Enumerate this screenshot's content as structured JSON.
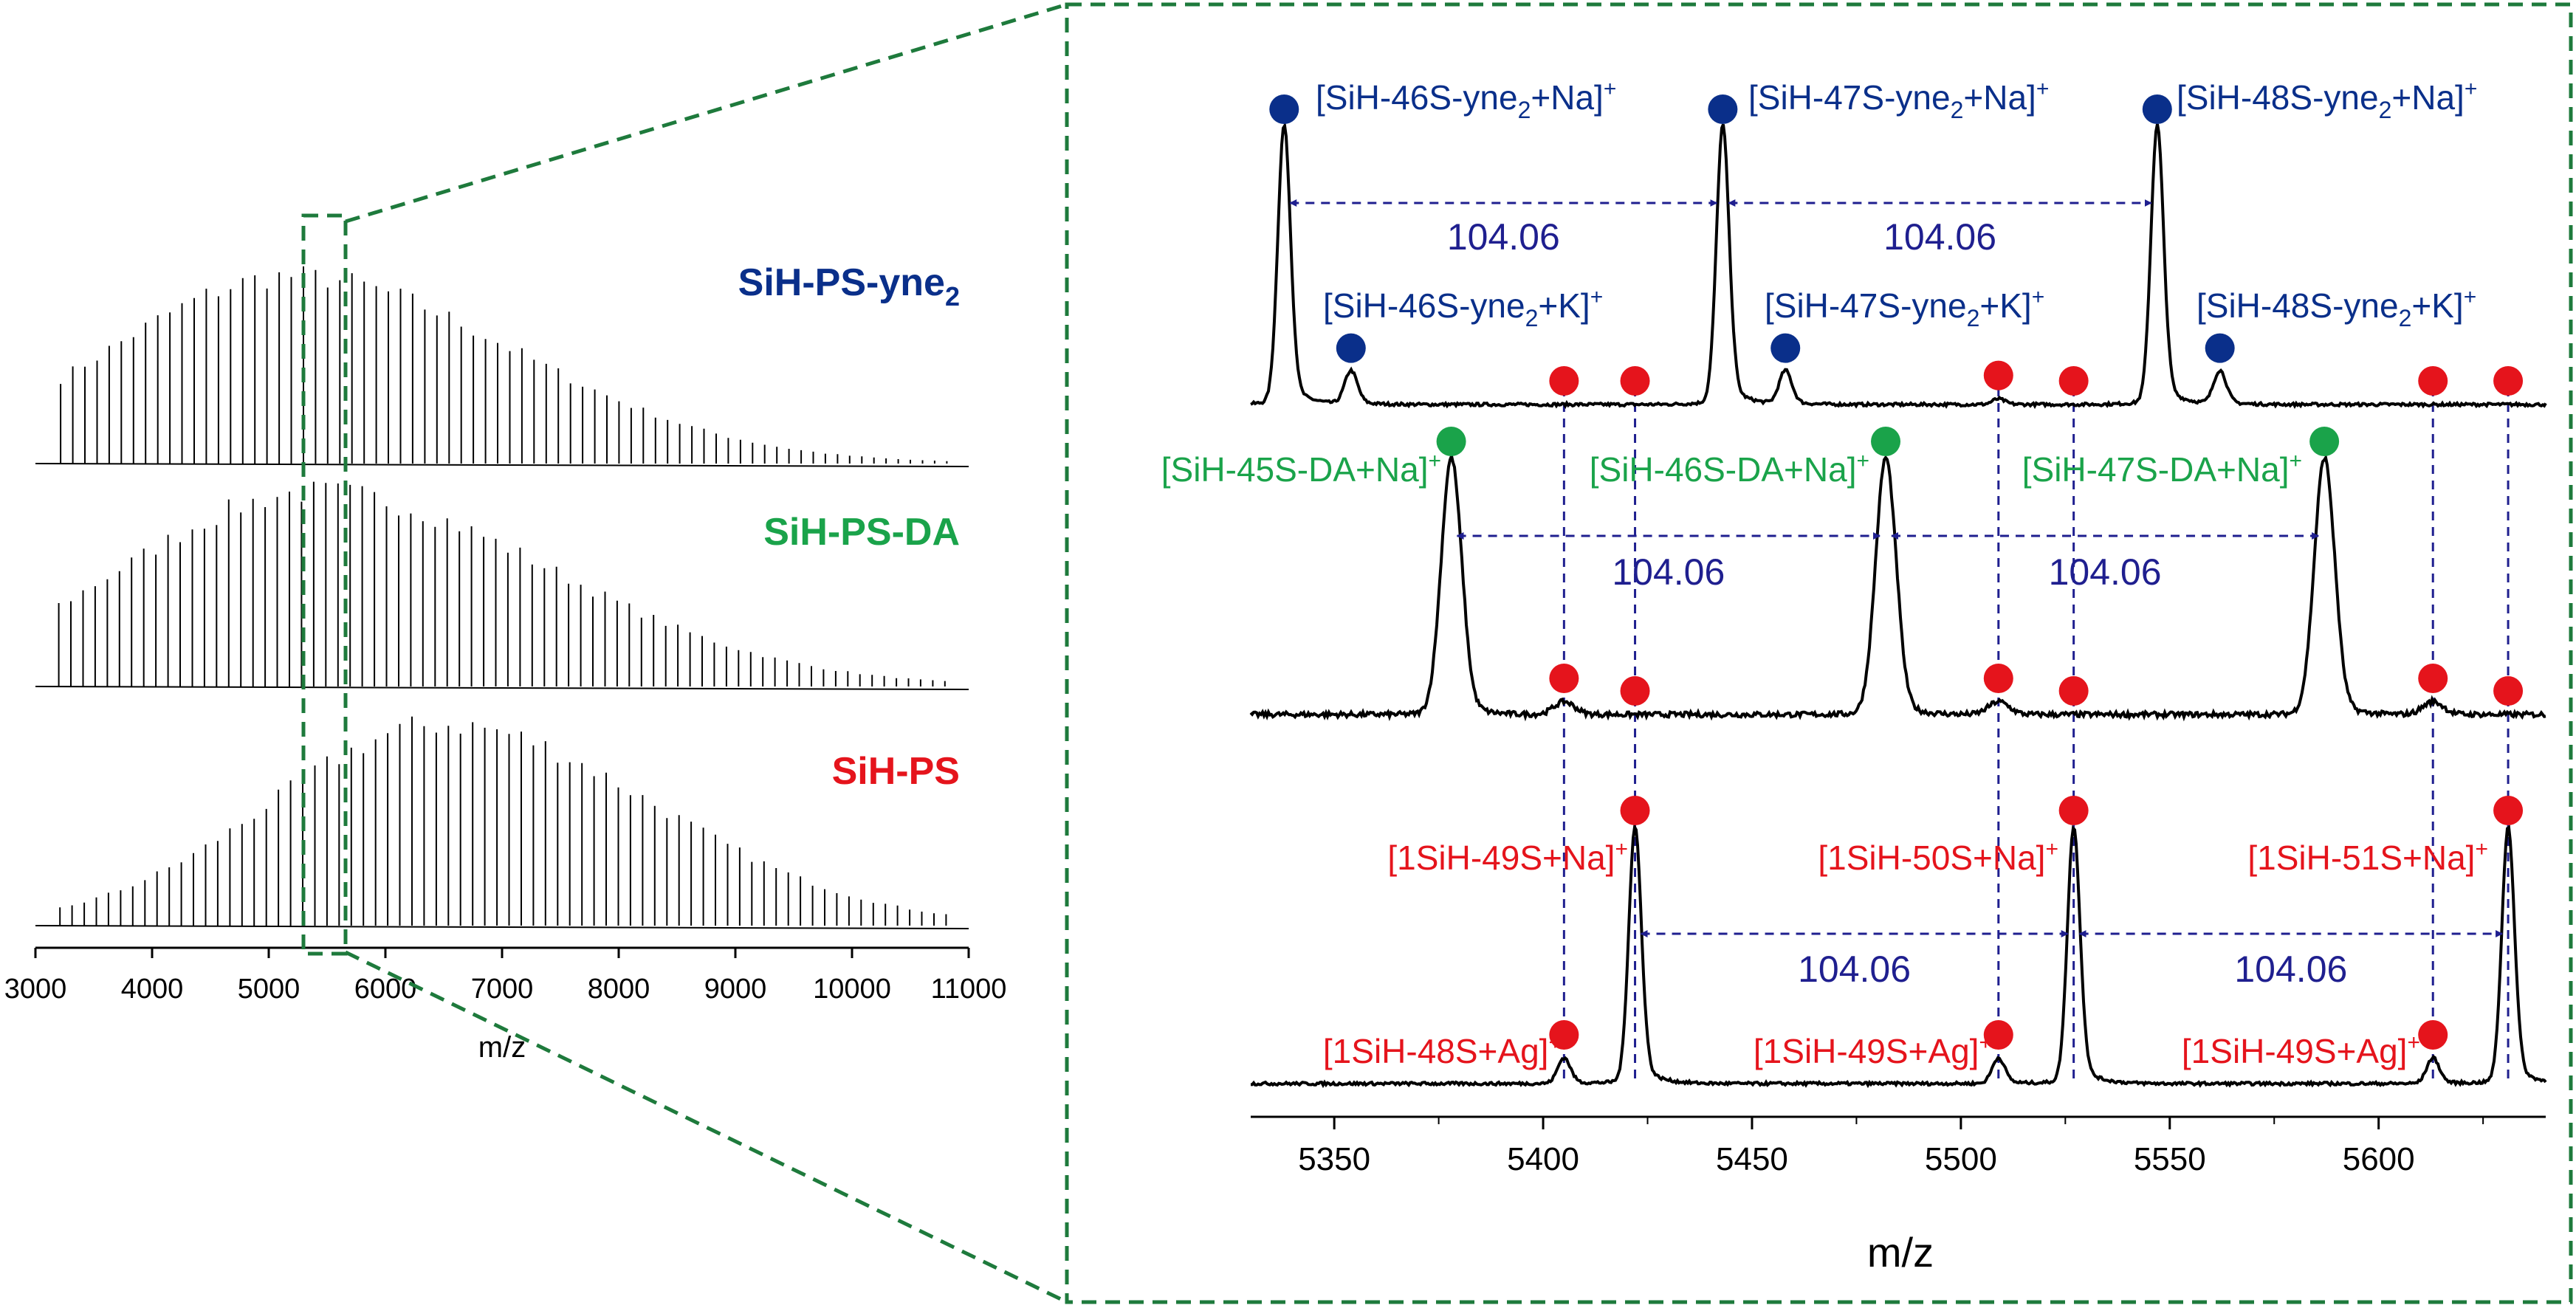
{
  "colors": {
    "blue": "#0a2f8a",
    "green": "#1aa34a",
    "red": "#e5141c",
    "zoom_box": "#1e7a3c",
    "guide": "#1f1f8f",
    "trace": "#000000"
  },
  "chart_data": [
    {
      "type": "line",
      "xlabel": "m/z",
      "ylabel": "",
      "xlim": [
        3000,
        11000
      ],
      "x_ticks": [
        "3000",
        "4000",
        "5000",
        "6000",
        "7000",
        "8000",
        "9000",
        "10000",
        "11000"
      ],
      "grid": false,
      "peak_spacing": 104.06,
      "zoom_range": [
        5330,
        5640
      ],
      "series": [
        {
          "name": "SiH-PS-yne",
          "name_subscript": "2",
          "first_peak_mz": 3216,
          "envelope_center": 5200,
          "envelope_width": 1800,
          "color_key": "blue"
        },
        {
          "name": "SiH-PS-DA",
          "first_peak_mz": 3200,
          "envelope_center": 5400,
          "envelope_width": 1900,
          "color_key": "green"
        },
        {
          "name": "SiH-PS",
          "first_peak_mz": 3210,
          "envelope_center": 6500,
          "envelope_width": 1700,
          "color_key": "red"
        }
      ]
    },
    {
      "type": "line",
      "xlabel": "m/z",
      "ylabel": "",
      "xlim": [
        5330,
        5640
      ],
      "x_ticks": [
        "5350",
        "5400",
        "5450",
        "5500",
        "5550",
        "5600"
      ],
      "grid": false,
      "series": [
        {
          "name": "SiH-PS-yne2",
          "peaks": [
            {
              "mz": 5338,
              "height": 1.0,
              "marker": "blue"
            },
            {
              "mz": 5354,
              "height": 0.12,
              "marker": "blue"
            },
            {
              "mz": 5405,
              "height": 0.0,
              "marker": "red"
            },
            {
              "mz": 5422,
              "height": 0.0,
              "marker": "red"
            },
            {
              "mz": 5443,
              "height": 1.0,
              "marker": "blue"
            },
            {
              "mz": 5458,
              "height": 0.12,
              "marker": "blue"
            },
            {
              "mz": 5509,
              "height": 0.02,
              "marker": "red"
            },
            {
              "mz": 5527,
              "height": 0.0,
              "marker": "red"
            },
            {
              "mz": 5547,
              "height": 1.0,
              "marker": "blue"
            },
            {
              "mz": 5562,
              "height": 0.12,
              "marker": "blue"
            },
            {
              "mz": 5613,
              "height": 0.0,
              "marker": "red"
            },
            {
              "mz": 5631,
              "height": 0.0,
              "marker": "red"
            }
          ],
          "labels": [
            {
              "pre": "[SiH-46S-yne",
              "sub": "2",
              "post": "+Na]",
              "sup": "+",
              "color_key": "blue"
            },
            {
              "pre": "[SiH-47S-yne",
              "sub": "2",
              "post": "+Na]",
              "sup": "+",
              "color_key": "blue"
            },
            {
              "pre": "[SiH-48S-yne",
              "sub": "2",
              "post": "+Na]",
              "sup": "+",
              "color_key": "blue"
            },
            {
              "pre": "[SiH-46S-yne",
              "sub": "2",
              "post": "+K]",
              "sup": "+",
              "color_key": "blue"
            },
            {
              "pre": "[SiH-47S-yne",
              "sub": "2",
              "post": "+K]",
              "sup": "+",
              "color_key": "blue"
            },
            {
              "pre": "[SiH-48S-yne",
              "sub": "2",
              "post": "+K]",
              "sup": "+",
              "color_key": "blue"
            }
          ],
          "spacings": [
            {
              "from": 5338,
              "to": 5443,
              "label": "104.06"
            },
            {
              "from": 5443,
              "to": 5547,
              "label": "104.06"
            }
          ]
        },
        {
          "name": "SiH-PS-DA",
          "peaks": [
            {
              "mz": 5378,
              "height": 1.0,
              "marker": "green"
            },
            {
              "mz": 5405,
              "height": 0.05,
              "marker": "red"
            },
            {
              "mz": 5422,
              "height": 0.0,
              "marker": "red"
            },
            {
              "mz": 5482,
              "height": 1.0,
              "marker": "green"
            },
            {
              "mz": 5509,
              "height": 0.05,
              "marker": "red"
            },
            {
              "mz": 5527,
              "height": 0.0,
              "marker": "red"
            },
            {
              "mz": 5587,
              "height": 1.0,
              "marker": "green"
            },
            {
              "mz": 5613,
              "height": 0.05,
              "marker": "red"
            },
            {
              "mz": 5631,
              "height": 0.0,
              "marker": "red"
            }
          ],
          "labels": [
            {
              "pre": "[SiH-45S-DA+Na]",
              "sup": "+",
              "color_key": "green"
            },
            {
              "pre": "[SiH-46S-DA+Na]",
              "sup": "+",
              "color_key": "green"
            },
            {
              "pre": "[SiH-47S-DA+Na]",
              "sup": "+",
              "color_key": "green"
            }
          ],
          "spacings": [
            {
              "from": 5378,
              "to": 5482,
              "label": "104.06"
            },
            {
              "from": 5482,
              "to": 5587,
              "label": "104.06"
            }
          ]
        },
        {
          "name": "SiH-PS",
          "peaks": [
            {
              "mz": 5405,
              "height": 0.1,
              "marker": "red"
            },
            {
              "mz": 5422,
              "height": 1.0,
              "marker": "red"
            },
            {
              "mz": 5509,
              "height": 0.1,
              "marker": "red"
            },
            {
              "mz": 5527,
              "height": 1.0,
              "marker": "red"
            },
            {
              "mz": 5613,
              "height": 0.1,
              "marker": "red"
            },
            {
              "mz": 5631,
              "height": 1.0,
              "marker": "red"
            }
          ],
          "labels": [
            {
              "pre": "[1SiH-49S+Na]",
              "sup": "+",
              "color_key": "red"
            },
            {
              "pre": "[1SiH-50S+Na]",
              "sup": "+",
              "color_key": "red"
            },
            {
              "pre": "[1SiH-51S+Na]",
              "sup": "+",
              "color_key": "red"
            },
            {
              "pre": "[1SiH-48S+Ag]",
              "sup": "+",
              "color_key": "red"
            },
            {
              "pre": "[1SiH-49S+Ag]",
              "sup": "+",
              "color_key": "red"
            },
            {
              "pre": "[1SiH-49S+Ag]",
              "sup": "+",
              "color_key": "red"
            }
          ],
          "spacings": [
            {
              "from": 5422,
              "to": 5527,
              "label": "104.06"
            },
            {
              "from": 5527,
              "to": 5631,
              "label": "104.06"
            }
          ]
        }
      ]
    }
  ]
}
